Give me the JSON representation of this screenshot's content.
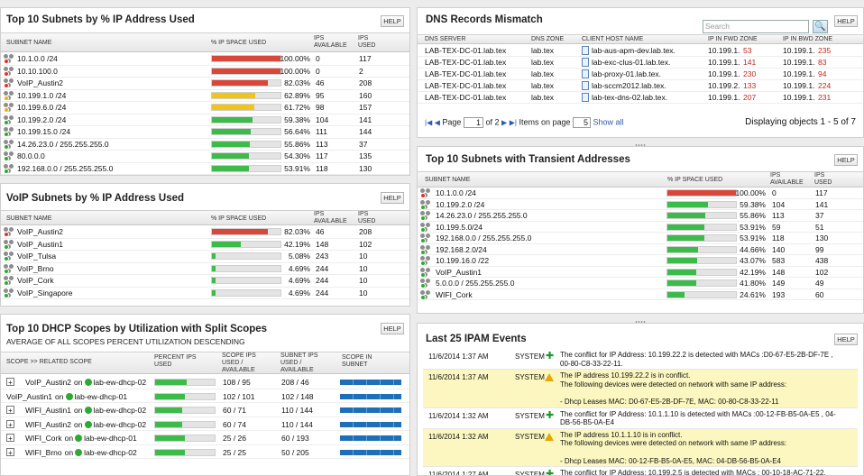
{
  "subnets_used": {
    "title": "Top 10 Subnets by % IP Address Used",
    "help": "HELP",
    "columns": [
      "SUBNET NAME",
      "% IP SPACE USED",
      "IPS AVAILABLE",
      "IPS USED"
    ],
    "rows": [
      {
        "name": "10.1.0.0 /24",
        "pct": "100.00%",
        "value": 100,
        "avail": "0",
        "used": "117",
        "color": "#d9473a",
        "status": "#d33"
      },
      {
        "name": "10.10.100.0",
        "pct": "100.00%",
        "value": 100,
        "avail": "0",
        "used": "2",
        "color": "#d9473a",
        "status": "#d33"
      },
      {
        "name": "VoIP_Austin2",
        "pct": "82.03%",
        "value": 82.03,
        "avail": "46",
        "used": "208",
        "color": "#d9473a",
        "status": "#d33"
      },
      {
        "name": "10.199.1.0 /24",
        "pct": "62.89%",
        "value": 62.89,
        "avail": "95",
        "used": "160",
        "color": "#f0c419",
        "status": "#e8b400"
      },
      {
        "name": "10.199.6.0 /24",
        "pct": "61.72%",
        "value": 61.72,
        "avail": "98",
        "used": "157",
        "color": "#f0c419",
        "status": "#e8b400"
      },
      {
        "name": "10.199.2.0 /24",
        "pct": "59.38%",
        "value": 59.38,
        "avail": "104",
        "used": "141",
        "color": "#3dbb4a",
        "status": "#2eaa34"
      },
      {
        "name": "10.199.15.0 /24",
        "pct": "56.64%",
        "value": 56.64,
        "avail": "111",
        "used": "144",
        "color": "#3dbb4a",
        "status": "#2eaa34"
      },
      {
        "name": "14.26.23.0 / 255.255.255.0",
        "pct": "55.86%",
        "value": 55.86,
        "avail": "113",
        "used": "37",
        "color": "#3dbb4a",
        "status": "#2eaa34"
      },
      {
        "name": "80.0.0.0",
        "pct": "54.30%",
        "value": 54.3,
        "avail": "117",
        "used": "135",
        "color": "#3dbb4a",
        "status": "#2eaa34"
      },
      {
        "name": "192.168.0.0 / 255.255.255.0",
        "pct": "53.91%",
        "value": 53.91,
        "avail": "118",
        "used": "130",
        "color": "#3dbb4a",
        "status": "#2eaa34"
      }
    ]
  },
  "voip": {
    "title": "VoIP Subnets by % IP Address Used",
    "help": "HELP",
    "columns": [
      "SUBNET NAME",
      "% IP SPACE USED",
      "IPS AVAILABLE",
      "IPS USED"
    ],
    "rows": [
      {
        "name": "VoIP_Austin2",
        "pct": "82.03%",
        "value": 82.03,
        "avail": "46",
        "used": "208",
        "color": "#d9473a",
        "status": "#d33"
      },
      {
        "name": "VoIP_Austin1",
        "pct": "42.19%",
        "value": 42.19,
        "avail": "148",
        "used": "102",
        "color": "#3dbb4a",
        "status": "#2eaa34"
      },
      {
        "name": "VoIP_Tulsa",
        "pct": "5.08%",
        "value": 5.08,
        "avail": "243",
        "used": "10",
        "color": "#3dbb4a",
        "status": "#2eaa34"
      },
      {
        "name": "VoIP_Brno",
        "pct": "4.69%",
        "value": 4.69,
        "avail": "244",
        "used": "10",
        "color": "#3dbb4a",
        "status": "#2eaa34"
      },
      {
        "name": "VoIP_Cork",
        "pct": "4.69%",
        "value": 4.69,
        "avail": "244",
        "used": "10",
        "color": "#3dbb4a",
        "status": "#2eaa34"
      },
      {
        "name": "VoIP_Singapore",
        "pct": "4.69%",
        "value": 4.69,
        "avail": "244",
        "used": "10",
        "color": "#3dbb4a",
        "status": "#2eaa34"
      }
    ]
  },
  "dhcp": {
    "title": "Top 10 DHCP Scopes by Utilization with Split Scopes",
    "subtitle": "AVERAGE OF ALL SCOPES PERCENT UTILIZATION DESCENDING",
    "help": "HELP",
    "columns": [
      "SCOPE >> RELATED SCOPE",
      "PERCENT IPS USED",
      "SCOPE IPS USED / AVAILABLE",
      "SUBNET IPS USED / AVAILABLE",
      "SCOPE IN SUBNET"
    ],
    "rows": [
      {
        "scope": "VoIP_Austin2",
        "on": "on",
        "server": "lab-ew-dhcp-02",
        "value": 53,
        "scope_ips": "108 / 95",
        "subnet_ips": "208 / 46",
        "expand": "+"
      },
      {
        "scope": "VoIP_Austin1",
        "on": "on",
        "server": "lab-ew-dhcp-01",
        "value": 50,
        "scope_ips": "102 / 101",
        "subnet_ips": "102 / 148",
        "expand": ""
      },
      {
        "scope": "WIFI_Austin1",
        "on": "on",
        "server": "lab-ew-dhcp-02",
        "value": 46,
        "scope_ips": "60 / 71",
        "subnet_ips": "110 / 144",
        "expand": "+"
      },
      {
        "scope": "WIFI_Austin2",
        "on": "on",
        "server": "lab-ew-dhcp-02",
        "value": 45,
        "scope_ips": "60 / 74",
        "subnet_ips": "110 / 144",
        "expand": "+"
      },
      {
        "scope": "WIFI_Cork",
        "on": "on",
        "server": "lab-ew-dhcp-01",
        "value": 50,
        "scope_ips": "25 / 26",
        "subnet_ips": "60 / 193",
        "expand": "+"
      },
      {
        "scope": "WIFI_Brno",
        "on": "on",
        "server": "lab-ew-dhcp-02",
        "value": 50,
        "scope_ips": "25 / 25",
        "subnet_ips": "50 / 205",
        "expand": "+"
      }
    ]
  },
  "dns": {
    "title": "DNS Records Mismatch",
    "help": "HELP",
    "search_placeholder": "Search",
    "search_icon": "🔍",
    "columns": [
      "DNS SERVER",
      "DNS ZONE",
      "CLIENT HOST NAME",
      "IP IN FWD ZONE",
      "IP IN BWD ZONE"
    ],
    "rows": [
      {
        "server": "LAB-TEX-DC-01.lab.tex",
        "zone": "lab.tex",
        "host": "lab-aus-apm-dev.lab.tex.",
        "fwd_a": "10.199.1.",
        "fwd_b": "53",
        "bwd_a": "10.199.1.",
        "bwd_b": "235"
      },
      {
        "server": "LAB-TEX-DC-01.lab.tex",
        "zone": "lab.tex",
        "host": "lab-exc-clus-01.lab.tex.",
        "fwd_a": "10.199.1.",
        "fwd_b": "141",
        "bwd_a": "10.199.1.",
        "bwd_b": "83"
      },
      {
        "server": "LAB-TEX-DC-01.lab.tex",
        "zone": "lab.tex",
        "host": "lab-proxy-01.lab.tex.",
        "fwd_a": "10.199.1.",
        "fwd_b": "230",
        "bwd_a": "10.199.1.",
        "bwd_b": "94"
      },
      {
        "server": "LAB-TEX-DC-01.lab.tex",
        "zone": "lab.tex",
        "host": "lab-sccm2012.lab.tex.",
        "fwd_a": "10.199.2.",
        "fwd_b": "133",
        "bwd_a": "10.199.1.",
        "bwd_b": "224"
      },
      {
        "server": "LAB-TEX-DC-01.lab.tex",
        "zone": "lab.tex",
        "host": "lab-tex-dns-02.lab.tex.",
        "fwd_a": "10.199.1.",
        "fwd_b": "207",
        "bwd_a": "10.199.1.",
        "bwd_b": "231"
      }
    ],
    "pager": {
      "first": "|◀",
      "prev": "◀",
      "page_label": "Page",
      "page_value": "1",
      "of": "of 2",
      "next": "▶",
      "last": "▶|",
      "items_label": "Items on page",
      "items_value": "5",
      "show_all": "Show all",
      "displaying": "Displaying objects 1 - 5 of 7"
    }
  },
  "transient": {
    "title": "Top 10 Subnets with Transient Addresses",
    "help": "HELP",
    "columns": [
      "SUBNET NAME",
      "% IP SPACE USED",
      "IPS AVAILABLE",
      "IPS USED"
    ],
    "rows": [
      {
        "name": "10.1.0.0 /24",
        "pct": "100.00%",
        "value": 100,
        "avail": "0",
        "used": "117",
        "color": "#d9473a",
        "status": "#d33"
      },
      {
        "name": "10.199.2.0 /24",
        "pct": "59.38%",
        "value": 59.38,
        "avail": "104",
        "used": "141",
        "color": "#3dbb4a",
        "status": "#2eaa34"
      },
      {
        "name": "14.26.23.0 / 255.255.255.0",
        "pct": "55.86%",
        "value": 55.86,
        "avail": "113",
        "used": "37",
        "color": "#3dbb4a",
        "status": "#2eaa34"
      },
      {
        "name": "10.199.5.0/24",
        "pct": "53.91%",
        "value": 53.91,
        "avail": "59",
        "used": "51",
        "color": "#3dbb4a",
        "status": "#2eaa34"
      },
      {
        "name": "192.168.0.0 / 255.255.255.0",
        "pct": "53.91%",
        "value": 53.91,
        "avail": "118",
        "used": "130",
        "color": "#3dbb4a",
        "status": "#2eaa34"
      },
      {
        "name": "192.168.2.0/24",
        "pct": "44.66%",
        "value": 44.66,
        "avail": "140",
        "used": "99",
        "color": "#3dbb4a",
        "status": "#2eaa34"
      },
      {
        "name": "10.199.16.0 /22",
        "pct": "43.07%",
        "value": 43.07,
        "avail": "583",
        "used": "438",
        "color": "#3dbb4a",
        "status": "#2eaa34"
      },
      {
        "name": "VoIP_Austin1",
        "pct": "42.19%",
        "value": 42.19,
        "avail": "148",
        "used": "102",
        "color": "#3dbb4a",
        "status": "#2eaa34"
      },
      {
        "name": "5.0.0.0 / 255.255.255.0",
        "pct": "41.80%",
        "value": 41.8,
        "avail": "149",
        "used": "49",
        "color": "#3dbb4a",
        "status": "#2eaa34"
      },
      {
        "name": "WIFI_Cork",
        "pct": "24.61%",
        "value": 24.61,
        "avail": "193",
        "used": "60",
        "color": "#3dbb4a",
        "status": "#2eaa34"
      }
    ]
  },
  "events": {
    "title": "Last 25 IPAM Events",
    "help": "HELP",
    "rows": [
      {
        "time": "11/6/2014 1:37 AM",
        "user": "SYSTEM",
        "type": "plus",
        "lines": [
          "The conflict for IP Address: 10.199.22.2 is detected with MACs :D0-67-E5-2B-DF-7E ,",
          "00-80-C8-33-22-11."
        ],
        "highlight": false
      },
      {
        "time": "11/6/2014 1:37 AM",
        "user": "SYSTEM",
        "type": "warn",
        "lines": [
          "The IP address 10.199.22.2 is in conflict.",
          "The following devices were detected on network with same IP address:",
          "",
          "- Dhcp Leases MAC: D0-67-E5-2B-DF-7E, MAC: 00-80-C8-33-22-11"
        ],
        "highlight": true
      },
      {
        "time": "11/6/2014 1:32 AM",
        "user": "SYSTEM",
        "type": "plus",
        "lines": [
          "The conflict for IP Address: 10.1.1.10 is detected with MACs :00-12-FB-B5-0A-E5 , 04-",
          "DB-56-B5-0A-E4"
        ],
        "highlight": false
      },
      {
        "time": "11/6/2014 1:32 AM",
        "user": "SYSTEM",
        "type": "warn",
        "lines": [
          "The IP address 10.1.1.10 is in conflict.",
          "The following devices were detected on network with same IP address:",
          "",
          "- Dhcp Leases MAC: 00-12-FB-B5-0A-E5, MAC: 04-DB-56-B5-0A-E4"
        ],
        "highlight": true
      },
      {
        "time": "11/6/2014 1:27 AM",
        "user": "SYSTEM",
        "type": "plus",
        "lines": [
          "The conflict for IP Address: 10.199.2.5 is detected with MACs : 00-10-18-AC-71-22,"
        ],
        "highlight": false
      }
    ]
  }
}
